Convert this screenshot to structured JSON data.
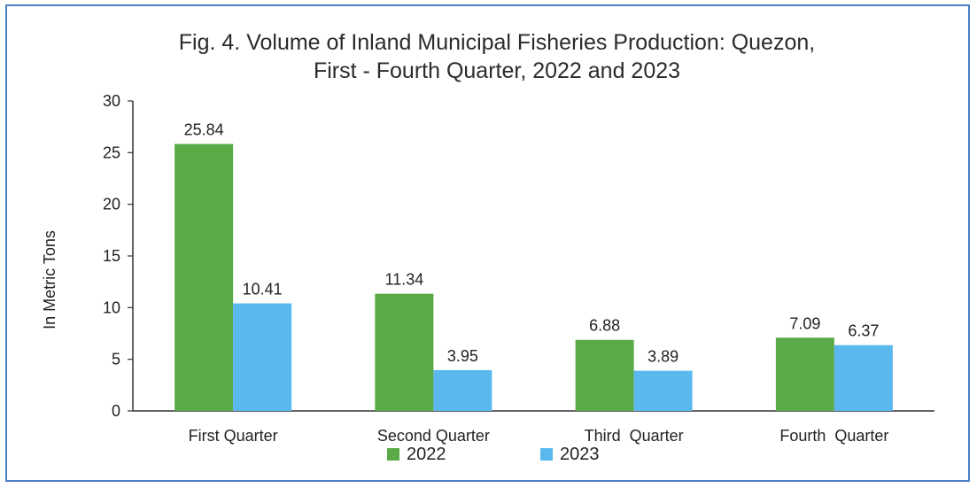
{
  "chart_data": {
    "type": "bar",
    "title_line1": "Fig. 4. Volume of Inland Municipal Fisheries Production: Quezon,",
    "title_line2": "First - Fourth Quarter, 2022 and 2023",
    "xlabel": "",
    "ylabel": "In Metric Tons",
    "ylim": [
      0,
      30
    ],
    "yticks": [
      0,
      5,
      10,
      15,
      20,
      25,
      30
    ],
    "grid": false,
    "legend_position": "bottom",
    "categories": [
      "First Quarter",
      "Second Quarter",
      "Third  Quarter",
      "Fourth  Quarter"
    ],
    "series": [
      {
        "name": "2022",
        "color": "#5aaa48",
        "values": [
          25.84,
          11.34,
          6.88,
          7.09
        ],
        "labels": [
          "25.84",
          "11.34",
          "6.88",
          "7.09"
        ]
      },
      {
        "name": "2023",
        "color": "#5bb8ef",
        "values": [
          10.41,
          3.95,
          3.89,
          6.37
        ],
        "labels": [
          "10.41",
          "3.95",
          "3.89",
          "6.37"
        ]
      }
    ]
  }
}
